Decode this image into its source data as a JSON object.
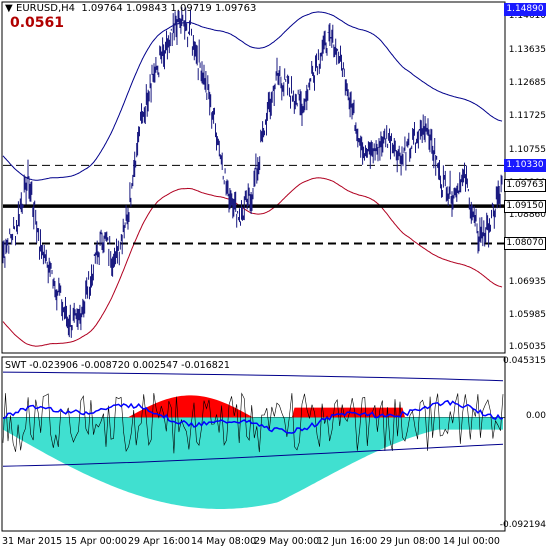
{
  "header": {
    "symbol_line": "EURUSD,H4  1.09764 1.09843 1.09719 1.09763",
    "indicator_value": "0.0561",
    "swt_line": "SWT -0.023906 -0.008720 0.002547 -0.016821"
  },
  "price_axis": {
    "labels": [
      "1.14610",
      "1.13635",
      "1.12685",
      "1.11725",
      "1.10755",
      "1.09800",
      "1.08860",
      "1.07910",
      "1.06935",
      "1.05985",
      "1.05035"
    ],
    "tags": {
      "high": {
        "text": "1.14890",
        "bg": "#1a1aff",
        "fg": "#ffffff"
      },
      "upper": {
        "text": "1.10330",
        "bg": "#1a1aff",
        "fg": "#ffffff"
      },
      "current": {
        "text": "1.09763",
        "bg": "#ffffff",
        "fg": "#000000"
      },
      "support": {
        "text": "1.09150",
        "bg": "#ffffff",
        "fg": "#000000"
      },
      "lower": {
        "text": "1.08070",
        "bg": "#ffffff",
        "fg": "#000000"
      }
    }
  },
  "indicator_axis": {
    "labels": [
      "0.045315",
      "0.00",
      "-0.092194"
    ]
  },
  "time_axis": {
    "labels": [
      "31 Mar 2015",
      "15 Apr 00:00",
      "29 Apr 16:00",
      "14 May 08:00",
      "29 May 00:00",
      "12 Jun 16:00",
      "29 Jun 08:00",
      "14 Jul 00:00"
    ]
  },
  "colors": {
    "candles": "#1a1a80",
    "envelope_upper": "#00008b",
    "envelope_lower": "#b00020",
    "hist_positive": "#ff0000",
    "hist_negative": "#40e0d0",
    "swt_line": "#0000ff",
    "indicator_value": "#b00000"
  },
  "chart_data": [
    {
      "type": "line",
      "title": "EURUSD,H4",
      "x_labels": [
        "31 Mar 2015",
        "15 Apr 00:00",
        "29 Apr 16:00",
        "14 May 08:00",
        "29 May 00:00",
        "12 Jun 16:00",
        "29 Jun 08:00",
        "14 Jul 00:00"
      ],
      "ylim": [
        1.049,
        1.15
      ],
      "series": [
        {
          "name": "EURUSD,H4",
          "values": [
            1.078,
            1.085,
            1.1,
            1.08,
            1.071,
            1.06,
            1.057,
            1.07,
            1.083,
            1.076,
            1.09,
            1.115,
            1.13,
            1.135,
            1.145,
            1.142,
            1.13,
            1.115,
            1.096,
            1.088,
            1.095,
            1.115,
            1.13,
            1.125,
            1.12,
            1.132,
            1.14,
            1.135,
            1.12,
            1.106,
            1.108,
            1.112,
            1.105,
            1.11,
            1.115,
            1.1,
            1.095,
            1.1,
            1.083,
            1.086,
            1.0976
          ]
        }
      ],
      "horizontal_levels": [
        1.1033,
        1.0915,
        1.0807
      ]
    },
    {
      "type": "area",
      "title": "SWT",
      "ylim": [
        -0.092194,
        0.045315
      ]
    }
  ]
}
